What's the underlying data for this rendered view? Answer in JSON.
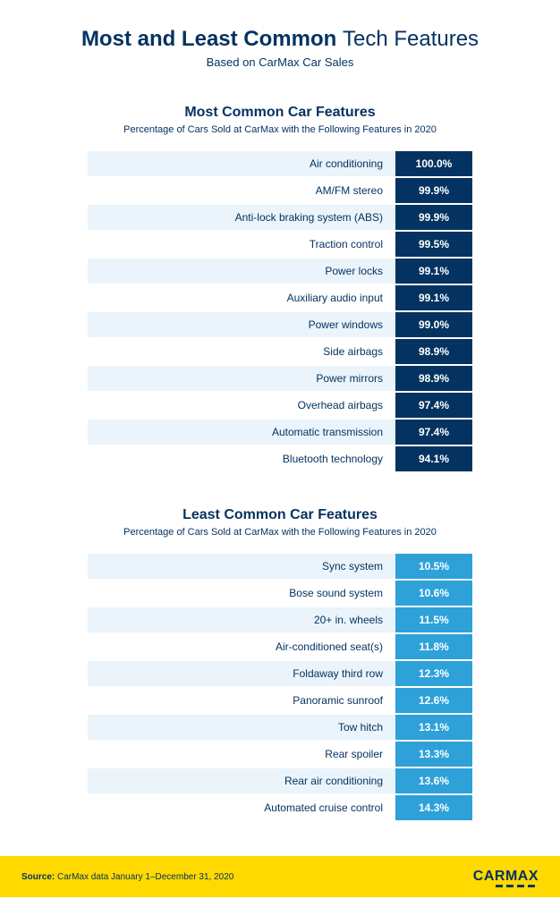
{
  "header": {
    "title_bold": "Most and Least Common",
    "title_light": "Tech Features",
    "subtitle": "Based on CarMax Car Sales"
  },
  "styles": {
    "title_color": "#053361",
    "most_label_bg_even": "#ffffff",
    "most_label_bg_odd": "#eaf4fa",
    "most_value_bg": "#053361",
    "least_label_bg_even": "#ffffff",
    "least_label_bg_odd": "#eaf4fa",
    "least_value_bg": "#2ea1d9",
    "footer_bg": "#ffd900"
  },
  "most": {
    "title": "Most Common Car Features",
    "subtitle": "Percentage of Cars Sold at CarMax with the Following Features in 2020",
    "rows": [
      {
        "label": "Air conditioning",
        "value": "100.0%"
      },
      {
        "label": "AM/FM stereo",
        "value": "99.9%"
      },
      {
        "label": "Anti-lock braking system (ABS)",
        "value": "99.9%"
      },
      {
        "label": "Traction control",
        "value": "99.5%"
      },
      {
        "label": "Power locks",
        "value": "99.1%"
      },
      {
        "label": "Auxiliary audio input",
        "value": "99.1%"
      },
      {
        "label": "Power windows",
        "value": "99.0%"
      },
      {
        "label": "Side airbags",
        "value": "98.9%"
      },
      {
        "label": "Power mirrors",
        "value": "98.9%"
      },
      {
        "label": "Overhead airbags",
        "value": "97.4%"
      },
      {
        "label": "Automatic transmission",
        "value": "97.4%"
      },
      {
        "label": "Bluetooth technology",
        "value": "94.1%"
      }
    ]
  },
  "least": {
    "title": "Least Common Car Features",
    "subtitle": "Percentage of Cars Sold at CarMax with the Following Features in 2020",
    "rows": [
      {
        "label": "Sync system",
        "value": "10.5%"
      },
      {
        "label": "Bose sound system",
        "value": "10.6%"
      },
      {
        "label": "20+ in. wheels",
        "value": "11.5%"
      },
      {
        "label": "Air-conditioned seat(s)",
        "value": "11.8%"
      },
      {
        "label": "Foldaway third row",
        "value": "12.3%"
      },
      {
        "label": "Panoramic sunroof",
        "value": "12.6%"
      },
      {
        "label": "Tow hitch",
        "value": "13.1%"
      },
      {
        "label": "Rear spoiler",
        "value": "13.3%"
      },
      {
        "label": "Rear air conditioning",
        "value": "13.6%"
      },
      {
        "label": "Automated cruise control",
        "value": "14.3%"
      }
    ]
  },
  "footer": {
    "source_label": "Source:",
    "source_text": "CarMax data January 1–December 31, 2020",
    "logo": "CARMAX"
  }
}
